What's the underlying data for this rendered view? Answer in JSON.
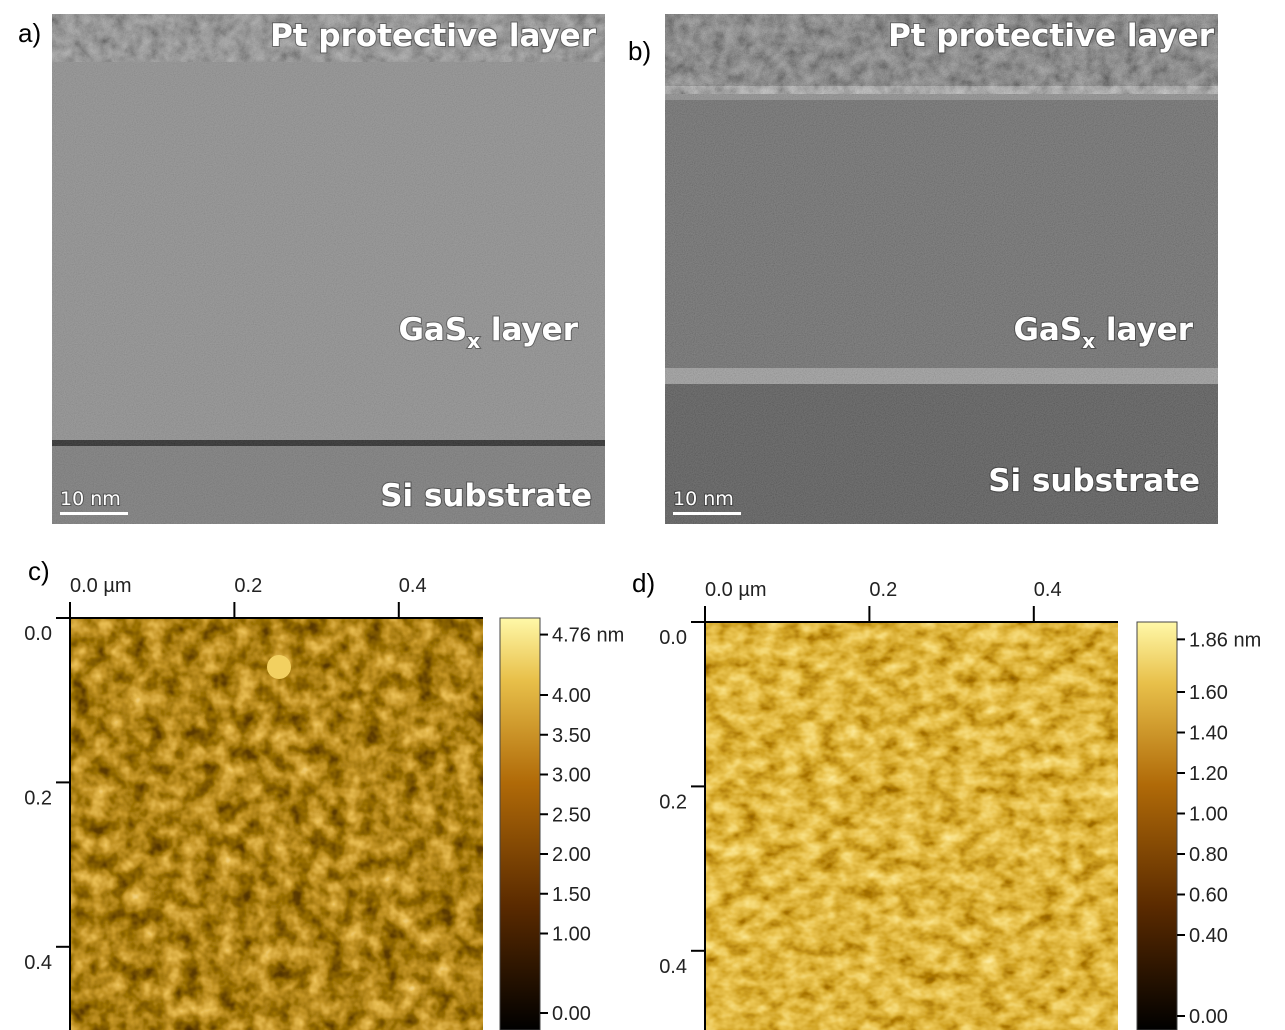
{
  "tem": [
    {
      "label": "a)",
      "top": "Pt protective layer",
      "middle": "GaS",
      "middle_sub": "x",
      "middle_suffix": " layer",
      "bottom": "Si substrate",
      "scale": "10 nm"
    },
    {
      "label": "b)",
      "top": "Pt protective layer",
      "middle": "GaS",
      "middle_sub": "x",
      "middle_suffix": " layer",
      "bottom": "Si substrate",
      "scale": "10 nm"
    }
  ],
  "afm": [
    {
      "label": "c)",
      "xticks": [
        {
          "value": 0,
          "label": "0.0 µm"
        },
        {
          "value": 0.2,
          "label": "0.2"
        },
        {
          "value": 0.4,
          "label": "0.4"
        }
      ],
      "yticks": [
        {
          "value": 0,
          "label": "0.0"
        },
        {
          "value": 0.2,
          "label": "0.2"
        },
        {
          "value": 0.4,
          "label": "0.4"
        }
      ],
      "colorbar": [
        {
          "value": 4.76,
          "label": "4.76 nm"
        },
        {
          "value": 4,
          "label": "4.00"
        },
        {
          "value": 3.5,
          "label": "3.50"
        },
        {
          "value": 3,
          "label": "3.00"
        },
        {
          "value": 2.5,
          "label": "2.50"
        },
        {
          "value": 2,
          "label": "2.00"
        },
        {
          "value": 1.5,
          "label": "1.50"
        },
        {
          "value": 1,
          "label": "1.00"
        },
        {
          "value": 0,
          "label": "0.00"
        }
      ]
    },
    {
      "label": "d)",
      "xticks": [
        {
          "value": 0,
          "label": "0.0 µm"
        },
        {
          "value": 0.2,
          "label": "0.2"
        },
        {
          "value": 0.4,
          "label": "0.4"
        }
      ],
      "yticks": [
        {
          "value": 0,
          "label": "0.0"
        },
        {
          "value": 0.2,
          "label": "0.2"
        },
        {
          "value": 0.4,
          "label": "0.4"
        }
      ],
      "colorbar": [
        {
          "value": 1.86,
          "label": "1.86 nm"
        },
        {
          "value": 1.6,
          "label": "1.60"
        },
        {
          "value": 1.4,
          "label": "1.40"
        },
        {
          "value": 1.2,
          "label": "1.20"
        },
        {
          "value": 1,
          "label": "1.00"
        },
        {
          "value": 0.8,
          "label": "0.80"
        },
        {
          "value": 0.6,
          "label": "0.60"
        },
        {
          "value": 0.4,
          "label": "0.40"
        },
        {
          "value": 0,
          "label": "0.00"
        }
      ]
    }
  ]
}
